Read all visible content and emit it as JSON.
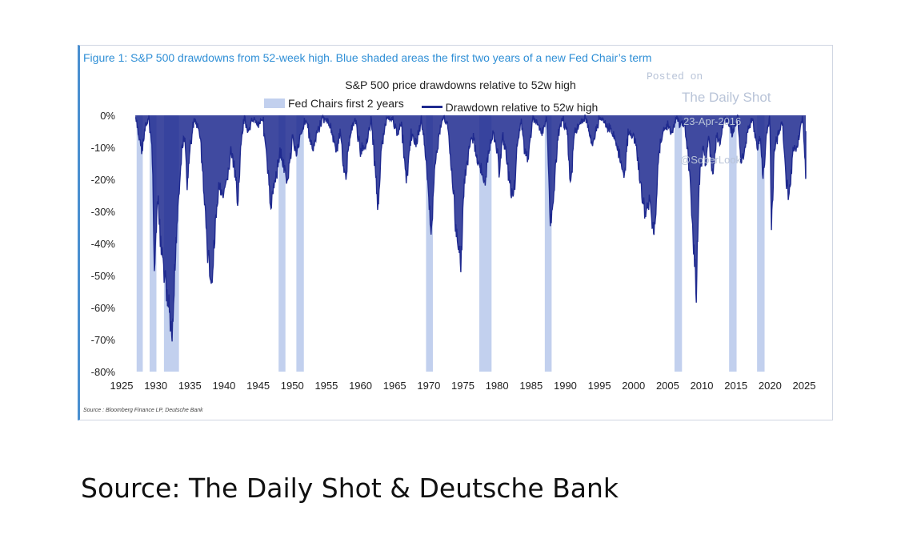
{
  "figure_title": "Figure 1: S&P 500 drawdowns from 52-week high. Blue shaded areas the first two years of a new Fed Chair’s term",
  "watermark": {
    "posted": "Posted on",
    "site": "The Daily Shot",
    "date": "23-Apr-2016",
    "handle": "@SoberLook"
  },
  "source_small": "Source : Bloomberg Finance LP, Deutsche Bank",
  "source_caption": "Source: The Daily Shot & Deutsche Bank",
  "colors": {
    "shade": "#c2d0ee",
    "line": "#1f2a8f"
  },
  "chart_data": {
    "type": "area",
    "title": "S&P 500 price drawdowns relative to 52w high",
    "legend": {
      "placement": "top",
      "entries": [
        "Fed Chairs first 2 years",
        "Drawdown relative to 52w high"
      ]
    },
    "xlabel": "",
    "ylabel": "",
    "xlim": [
      1925,
      2025
    ],
    "ylim": [
      -80,
      0
    ],
    "x_ticks": [
      1925,
      1930,
      1935,
      1940,
      1945,
      1950,
      1955,
      1960,
      1965,
      1970,
      1975,
      1980,
      1985,
      1990,
      1995,
      2000,
      2005,
      2010,
      2015,
      2020,
      2025
    ],
    "y_ticks": [
      0,
      -10,
      -20,
      -30,
      -40,
      -50,
      -60,
      -70,
      -80
    ],
    "y_tick_labels": [
      "0%",
      "-10%",
      "-20%",
      "-30%",
      "-40%",
      "-50%",
      "-60%",
      "-70%",
      "-80%"
    ],
    "grid": false,
    "shaded_periods": [
      {
        "start": 1927.2,
        "end": 1928.1
      },
      {
        "start": 1929.1,
        "end": 1930.1
      },
      {
        "start": 1931.2,
        "end": 1933.4
      },
      {
        "start": 1948.0,
        "end": 1949.0
      },
      {
        "start": 1950.6,
        "end": 1951.7
      },
      {
        "start": 1969.6,
        "end": 1970.6
      },
      {
        "start": 1977.4,
        "end": 1979.2
      },
      {
        "start": 1987.0,
        "end": 1988.0
      },
      {
        "start": 2006.0,
        "end": 2007.1
      },
      {
        "start": 2014.0,
        "end": 2015.1
      },
      {
        "start": 2018.1,
        "end": 2019.2
      }
    ],
    "series": [
      {
        "name": "Drawdown relative to 52w high",
        "points": [
          [
            1927.0,
            0
          ],
          [
            1927.5,
            -5
          ],
          [
            1928.0,
            -10
          ],
          [
            1928.5,
            -3
          ],
          [
            1929.0,
            0
          ],
          [
            1929.5,
            -10
          ],
          [
            1929.8,
            -45
          ],
          [
            1930.3,
            -25
          ],
          [
            1930.8,
            -40
          ],
          [
            1931.5,
            -50
          ],
          [
            1932.0,
            -60
          ],
          [
            1932.4,
            -70
          ],
          [
            1932.9,
            -40
          ],
          [
            1933.3,
            -25
          ],
          [
            1933.8,
            -10
          ],
          [
            1934.2,
            -5
          ],
          [
            1934.6,
            -20
          ],
          [
            1935.0,
            -10
          ],
          [
            1935.6,
            0
          ],
          [
            1936.5,
            -5
          ],
          [
            1937.0,
            -20
          ],
          [
            1937.6,
            -40
          ],
          [
            1938.2,
            -51
          ],
          [
            1938.8,
            -30
          ],
          [
            1939.3,
            -20
          ],
          [
            1939.8,
            -25
          ],
          [
            1940.4,
            -20
          ],
          [
            1941.0,
            -10
          ],
          [
            1941.5,
            -15
          ],
          [
            1942.0,
            -25
          ],
          [
            1942.5,
            -8
          ],
          [
            1943.0,
            0
          ],
          [
            1943.6,
            -5
          ],
          [
            1944.2,
            0
          ],
          [
            1945.0,
            -2
          ],
          [
            1945.7,
            0
          ],
          [
            1946.4,
            -15
          ],
          [
            1946.8,
            -27
          ],
          [
            1947.4,
            -20
          ],
          [
            1948.2,
            -10
          ],
          [
            1948.8,
            -15
          ],
          [
            1949.3,
            -20
          ],
          [
            1950.0,
            -5
          ],
          [
            1950.6,
            -12
          ],
          [
            1951.2,
            -5
          ],
          [
            1952.0,
            0
          ],
          [
            1953.0,
            -10
          ],
          [
            1953.6,
            -5
          ],
          [
            1954.5,
            0
          ],
          [
            1955.5,
            -2
          ],
          [
            1956.4,
            -10
          ],
          [
            1957.0,
            -5
          ],
          [
            1957.8,
            -18
          ],
          [
            1958.5,
            -5
          ],
          [
            1959.2,
            0
          ],
          [
            1960.0,
            -10
          ],
          [
            1960.8,
            -8
          ],
          [
            1961.6,
            0
          ],
          [
            1962.3,
            -20
          ],
          [
            1962.5,
            -28
          ],
          [
            1963.0,
            -10
          ],
          [
            1963.8,
            0
          ],
          [
            1964.6,
            0
          ],
          [
            1965.4,
            -5
          ],
          [
            1966.0,
            -2
          ],
          [
            1966.7,
            -20
          ],
          [
            1967.4,
            -5
          ],
          [
            1968.2,
            -8
          ],
          [
            1968.9,
            0
          ],
          [
            1969.5,
            -10
          ],
          [
            1970.0,
            -25
          ],
          [
            1970.4,
            -33
          ],
          [
            1970.9,
            -15
          ],
          [
            1971.5,
            -5
          ],
          [
            1972.2,
            0
          ],
          [
            1972.8,
            -2
          ],
          [
            1973.3,
            -15
          ],
          [
            1973.9,
            -30
          ],
          [
            1974.4,
            -40
          ],
          [
            1974.7,
            -45
          ],
          [
            1975.2,
            -20
          ],
          [
            1975.8,
            -10
          ],
          [
            1976.4,
            -5
          ],
          [
            1977.1,
            -12
          ],
          [
            1977.6,
            -15
          ],
          [
            1978.2,
            -20
          ],
          [
            1978.8,
            -10
          ],
          [
            1979.4,
            -5
          ],
          [
            1980.1,
            -10
          ],
          [
            1980.3,
            -17
          ],
          [
            1980.8,
            -5
          ],
          [
            1981.3,
            -10
          ],
          [
            1981.8,
            -20
          ],
          [
            1982.4,
            -25
          ],
          [
            1982.9,
            -10
          ],
          [
            1983.5,
            0
          ],
          [
            1984.0,
            -10
          ],
          [
            1984.6,
            -12
          ],
          [
            1985.2,
            0
          ],
          [
            1986.0,
            -2
          ],
          [
            1986.6,
            -5
          ],
          [
            1987.3,
            0
          ],
          [
            1987.8,
            -33
          ],
          [
            1988.4,
            -20
          ],
          [
            1989.0,
            -5
          ],
          [
            1989.6,
            0
          ],
          [
            1990.3,
            -5
          ],
          [
            1990.8,
            -20
          ],
          [
            1991.3,
            -5
          ],
          [
            1992.0,
            -2
          ],
          [
            1993.0,
            0
          ],
          [
            1994.0,
            -8
          ],
          [
            1995.0,
            0
          ],
          [
            1996.0,
            -2
          ],
          [
            1997.0,
            -5
          ],
          [
            1997.8,
            -10
          ],
          [
            1998.6,
            -19
          ],
          [
            1999.2,
            -5
          ],
          [
            1999.9,
            -5
          ],
          [
            2000.5,
            -10
          ],
          [
            2001.0,
            -20
          ],
          [
            2001.7,
            -30
          ],
          [
            2002.3,
            -25
          ],
          [
            2002.8,
            -34
          ],
          [
            2003.2,
            -30
          ],
          [
            2003.7,
            -10
          ],
          [
            2004.3,
            -5
          ],
          [
            2005.0,
            -2
          ],
          [
            2005.6,
            -5
          ],
          [
            2006.2,
            0
          ],
          [
            2006.8,
            -2
          ],
          [
            2007.5,
            -2
          ],
          [
            2007.9,
            -10
          ],
          [
            2008.3,
            -18
          ],
          [
            2008.8,
            -40
          ],
          [
            2009.2,
            -52
          ],
          [
            2009.6,
            -20
          ],
          [
            2010.2,
            -10
          ],
          [
            2010.5,
            -15
          ],
          [
            2011.0,
            -5
          ],
          [
            2011.6,
            -18
          ],
          [
            2012.2,
            -5
          ],
          [
            2012.7,
            -8
          ],
          [
            2013.3,
            0
          ],
          [
            2013.9,
            -2
          ],
          [
            2014.5,
            -5
          ],
          [
            2015.3,
            0
          ],
          [
            2015.7,
            -12
          ],
          [
            2016.1,
            -13
          ],
          [
            2016.8,
            -3
          ],
          [
            2017.5,
            0
          ],
          [
            2018.1,
            -10
          ],
          [
            2018.6,
            -5
          ],
          [
            2018.97,
            -19
          ],
          [
            2019.5,
            -5
          ],
          [
            2020.0,
            0
          ],
          [
            2020.2,
            -34
          ],
          [
            2020.6,
            -10
          ],
          [
            2021.2,
            -5
          ],
          [
            2021.8,
            0
          ],
          [
            2022.4,
            -20
          ],
          [
            2022.8,
            -25
          ],
          [
            2023.3,
            -10
          ],
          [
            2023.8,
            -10
          ],
          [
            2024.3,
            -5
          ],
          [
            2024.8,
            0
          ],
          [
            2025.3,
            -19
          ],
          [
            2025.7,
            -5
          ],
          [
            2026.1,
            -9
          ]
        ]
      }
    ]
  }
}
